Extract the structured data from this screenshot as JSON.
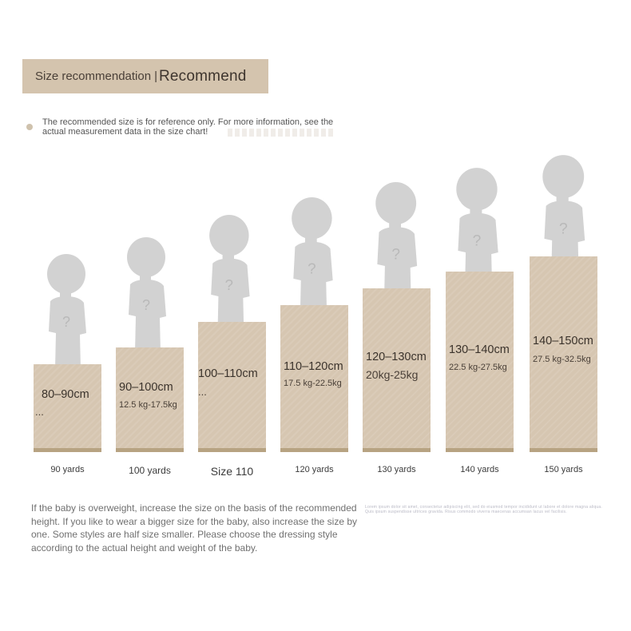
{
  "header": {
    "title": "Size recommendation",
    "separator": "|",
    "subtitle": "Recommend"
  },
  "note": "The recommended size is for reference only. For more information, see the actual measurement data in the size chart!",
  "columns": [
    {
      "height": "80–90cm",
      "weight": "...",
      "yard": "90 yards"
    },
    {
      "height": "90–100cm",
      "weight": "12.5 kg-17.5kg",
      "yard": "100 yards"
    },
    {
      "height": "100–110cm",
      "weight": "...",
      "yard": "Size 110"
    },
    {
      "height": "110–120cm",
      "weight": "17.5 kg-22.5kg",
      "yard": "120 yards"
    },
    {
      "height": "120–130cm",
      "weight": "20kg-25kg",
      "yard": "130 yards"
    },
    {
      "height": "130–140cm",
      "weight": "22.5 kg-27.5kg",
      "yard": "140 yards"
    },
    {
      "height": "140–150cm",
      "weight": "27.5 kg-32.5kg",
      "yard": "150 yards"
    }
  ],
  "figure_mark": "?",
  "footer": "If the baby is overweight, increase the size on the basis of the recommended height. If you like to wear a bigger size for the baby, also increase the size by one. Some styles are half size smaller. Please choose the dressing style according to the actual height and weight of the baby.",
  "footer_ghost": "Lorem ipsum dolor sit amet, consectetur adipiscing elit, sed do eiusmod tempor incididunt ut labore et dolore magna aliqua. Quis ipsum suspendisse ultrices gravida. Risus commodo viverra maecenas accumsan lacus vel facilisis.",
  "colors": {
    "banner": "#d4c4ae",
    "column": "#d6c6b1",
    "column_base": "#b7a382",
    "silhouette": "#d2d2d2"
  }
}
